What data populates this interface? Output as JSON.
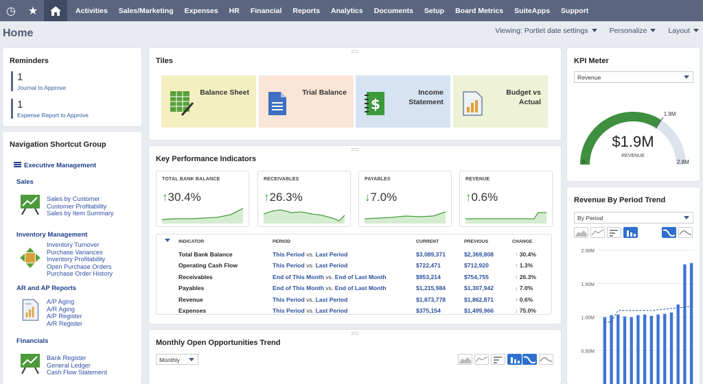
{
  "nav": {
    "icons": [
      "recent-icon",
      "star-icon",
      "home-icon"
    ],
    "items": [
      "Activities",
      "Sales/Marketing",
      "Expenses",
      "HR",
      "Financial",
      "Reports",
      "Analytics",
      "Documents",
      "Setup",
      "Board Metrics",
      "SuiteApps",
      "Support"
    ]
  },
  "page": {
    "title": "Home",
    "viewing": "Viewing: Portlet date settings",
    "personalize": "Personalize",
    "layout": "Layout"
  },
  "reminders": {
    "title": "Reminders",
    "items": [
      {
        "count": "1",
        "label": "Journal to Approve"
      },
      {
        "count": "1",
        "label": "Expense Report to Approve"
      }
    ]
  },
  "shortcuts": {
    "title": "Navigation Shortcut Group",
    "header": "Executive Management",
    "groups": [
      {
        "name": "Sales",
        "links": [
          "Sales by Customer",
          "Customer Profitability",
          "Sales by Item Summary"
        ]
      },
      {
        "name": "Inventory Management",
        "links": [
          "Inventory Turnover",
          "Purchase Variances",
          "Inventory Profitability",
          "Open Purchase Orders",
          "Purchase Order History"
        ]
      },
      {
        "name": "AR and AP Reports",
        "links": [
          "A/P Aging",
          "A/R Aging",
          "A/P Register",
          "A/R Register"
        ]
      },
      {
        "name": "Financials",
        "links": [
          "Bank Register",
          "General Ledger",
          "Cash Flow Statement"
        ]
      }
    ]
  },
  "tiles": {
    "title": "Tiles",
    "items": [
      {
        "line1": "Balance Sheet",
        "line2": "",
        "bg": "#f4efc1"
      },
      {
        "line1": "Trial Balance",
        "line2": "",
        "bg": "#fbe5d6"
      },
      {
        "line1": "Income",
        "line2": "Statement",
        "bg": "#d6e3f3"
      },
      {
        "line1": "Budget vs",
        "line2": "Actual",
        "bg": "#eef2d6"
      }
    ]
  },
  "kpi": {
    "title": "Key Performance Indicators",
    "cards": [
      {
        "label": "TOTAL BANK BALANCE",
        "value": "30.4%",
        "dir": "up"
      },
      {
        "label": "RECEIVABLES",
        "value": "26.3%",
        "dir": "up"
      },
      {
        "label": "PAYABLES",
        "value": "7.0%",
        "dir": "down"
      },
      {
        "label": "REVENUE",
        "value": "0.6%",
        "dir": "up"
      }
    ],
    "headers": {
      "indicator": "INDICATOR",
      "period": "PERIOD",
      "current": "CURRENT",
      "previous": "PREVIOUS",
      "change": "CHANGE"
    },
    "rows": [
      {
        "indicator": "Total Bank Balance",
        "p1": "This Period",
        "vs": "vs.",
        "p2": "Last Period",
        "current": "$3,089,371",
        "previous": "$2,369,808",
        "change": "30.4%",
        "dir": "up"
      },
      {
        "indicator": "Operating Cash Flow",
        "p1": "This Period",
        "vs": "vs.",
        "p2": "Last Period",
        "current": "$722,471",
        "previous": "$712,920",
        "change": "1.3%",
        "dir": "up"
      },
      {
        "indicator": "Receivables",
        "p1": "End of This Month",
        "vs": "vs.",
        "p2": "End of Last Month",
        "current": "$953,214",
        "previous": "$754,755",
        "change": "26.3%",
        "dir": "up"
      },
      {
        "indicator": "Payables",
        "p1": "End of This Month",
        "vs": "vs.",
        "p2": "End of Last Month",
        "current": "$1,215,984",
        "previous": "$1,307,942",
        "change": "7.0%",
        "dir": "down"
      },
      {
        "indicator": "Revenue",
        "p1": "This Period",
        "vs": "vs.",
        "p2": "Last Period",
        "current": "$1,873,778",
        "previous": "$1,862,871",
        "change": "0.6%",
        "dir": "up"
      },
      {
        "indicator": "Expenses",
        "p1": "This Period",
        "vs": "vs.",
        "p2": "Last Period",
        "current": "$375,154",
        "previous": "$1,499,966",
        "change": "75.0%",
        "dir": "down"
      }
    ]
  },
  "opps": {
    "title": "Monthly Open Opportunities Trend",
    "select": "Monthly"
  },
  "meter": {
    "title": "KPI Meter",
    "select": "Revenue",
    "value": "$1.9M",
    "caption": "REVENUE",
    "min": "0",
    "max": "2.8M",
    "mark": "1.9M",
    "level": 0.68,
    "colors": {
      "fill": "#3e8f3e",
      "track": "#dde3ec"
    }
  },
  "trend": {
    "title": "Revenue By Period Trend",
    "select": "By Period"
  },
  "chart_data": {
    "type": "bar",
    "title": "",
    "xlabel": "",
    "ylabel": "",
    "ylim": [
      0,
      2000000
    ],
    "yticks": [
      "2.00M",
      "1.50M",
      "1.00M",
      "0.50M"
    ],
    "ytick_values": [
      2000000,
      1500000,
      1000000,
      500000
    ],
    "values": [
      1000000,
      1030000,
      1040000,
      1010000,
      1000000,
      1030000,
      1040000,
      1020000,
      1040000,
      1050000,
      1070000,
      1190000,
      1790000,
      1810000
    ],
    "bar_color": "#3f74d6",
    "series_line": [
      920000,
      930000,
      1100000,
      1100000,
      1100000,
      1100000,
      1100000,
      1100000,
      1110000,
      1120000,
      1130000,
      1140000,
      1150000,
      1160000
    ]
  }
}
